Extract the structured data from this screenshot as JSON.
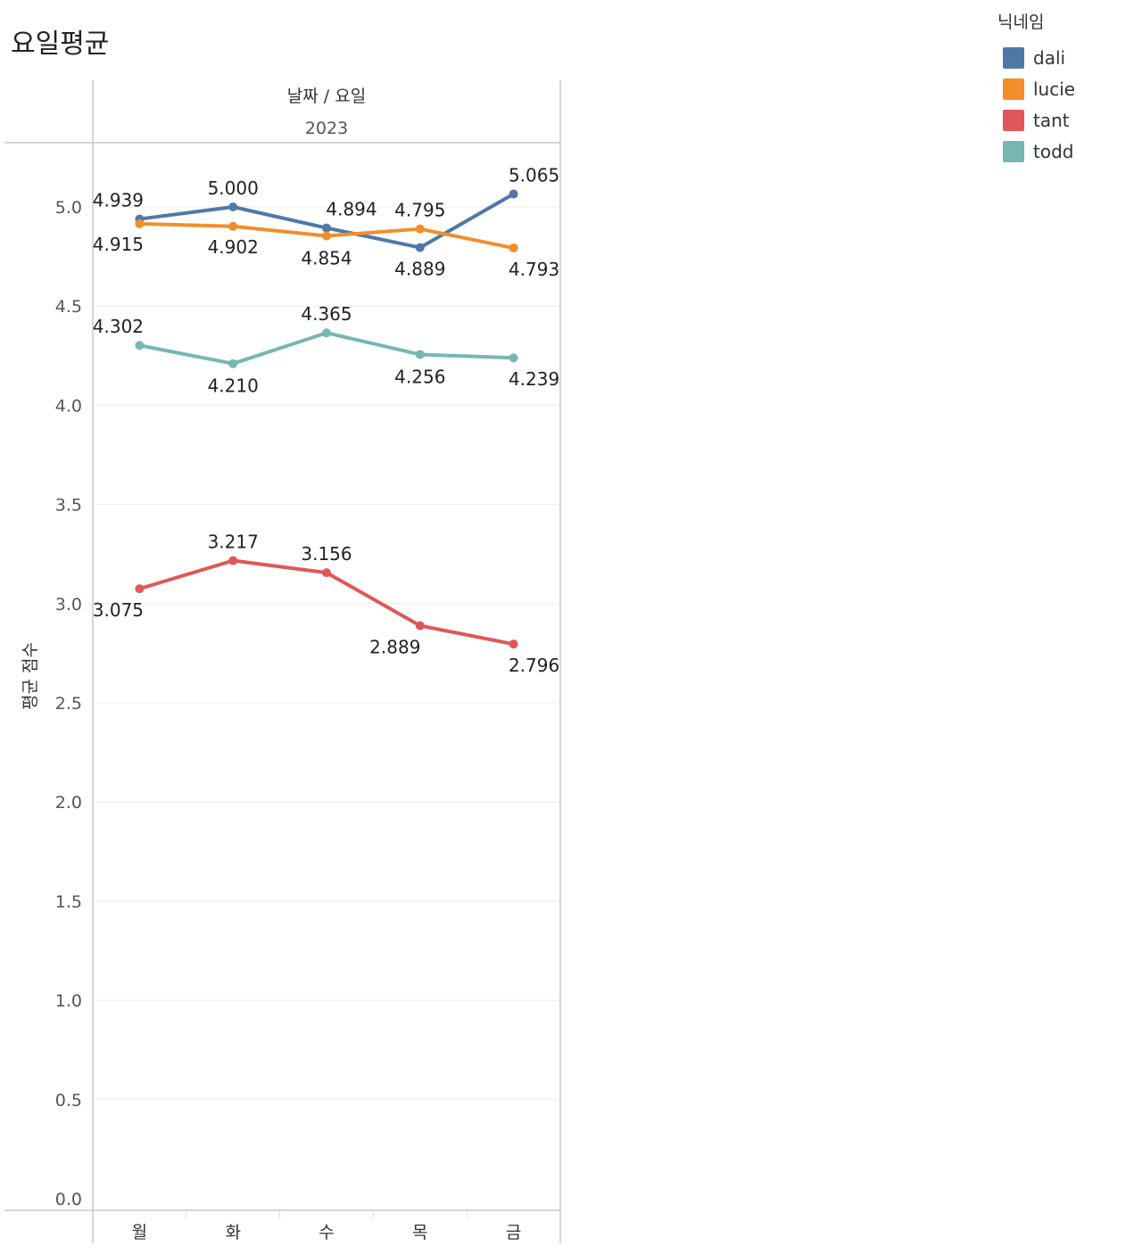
{
  "title": "요일평균",
  "legend": {
    "title": "닉네임",
    "items": [
      {
        "label": "dali",
        "color": "#4e79a7"
      },
      {
        "label": "lucie",
        "color": "#f28e2b"
      },
      {
        "label": "tant",
        "color": "#e15759"
      },
      {
        "label": "todd",
        "color": "#76b7b2"
      }
    ]
  },
  "chart_data": {
    "type": "line",
    "title": "요일평균",
    "column_header": "날짜 / 요일",
    "column_subheader": "2023",
    "ylabel": "평균 점수",
    "xlabel": "",
    "categories": [
      "월",
      "화",
      "수",
      "목",
      "금"
    ],
    "ylim": [
      0,
      5.3
    ],
    "yticks": [
      "0.0",
      "0.5",
      "1.0",
      "1.5",
      "2.0",
      "2.5",
      "3.0",
      "3.5",
      "4.0",
      "4.5",
      "5.0"
    ],
    "grid": true,
    "legend_position": "top-right",
    "series": [
      {
        "name": "dali",
        "color": "#4e79a7",
        "values": [
          4.939,
          5.0,
          4.894,
          4.795,
          5.065
        ],
        "labels": [
          "4.939",
          "5.000",
          "4.894",
          "4.795",
          "5.065"
        ]
      },
      {
        "name": "lucie",
        "color": "#f28e2b",
        "values": [
          4.915,
          4.902,
          4.854,
          4.889,
          4.793
        ],
        "labels": [
          "4.915",
          "4.902",
          "4.854",
          "4.889",
          "4.793"
        ]
      },
      {
        "name": "tant",
        "color": "#e15759",
        "values": [
          3.075,
          3.217,
          3.156,
          2.889,
          2.796
        ],
        "labels": [
          "3.075",
          "3.217",
          "3.156",
          "2.889",
          "2.796"
        ]
      },
      {
        "name": "todd",
        "color": "#76b7b2",
        "values": [
          4.302,
          4.21,
          4.365,
          4.256,
          4.239
        ],
        "labels": [
          "4.302",
          "4.210",
          "4.365",
          "4.256",
          "4.239"
        ]
      }
    ]
  }
}
